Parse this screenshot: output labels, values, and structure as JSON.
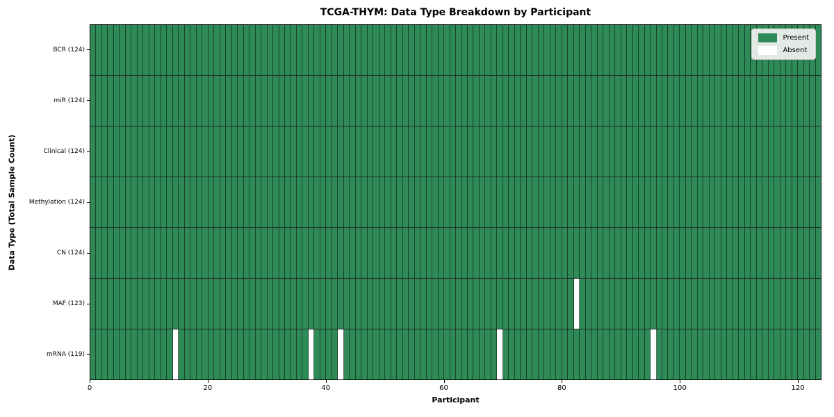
{
  "title": "TCGA-THYM: Data Type Breakdown by Participant",
  "chart_data": {
    "type": "heatmap",
    "title": "TCGA-THYM: Data Type Breakdown by Participant",
    "xlabel": "Participant",
    "ylabel": "Data Type (Total Sample Count)",
    "n_participants": 124,
    "x_range": [
      0,
      124
    ],
    "x_ticks": [
      0,
      20,
      40,
      60,
      80,
      100,
      120
    ],
    "grid": true,
    "legend_position": "upper right",
    "rows": [
      {
        "label": "BCR (124)",
        "total": 124,
        "absent_indices": []
      },
      {
        "label": "miR (124)",
        "total": 124,
        "absent_indices": []
      },
      {
        "label": "Clinical (124)",
        "total": 124,
        "absent_indices": []
      },
      {
        "label": "Methylation (124)",
        "total": 124,
        "absent_indices": []
      },
      {
        "label": "CN (124)",
        "total": 124,
        "absent_indices": []
      },
      {
        "label": "MAF (123)",
        "total": 123,
        "absent_indices": [
          82
        ]
      },
      {
        "label": "mRNA (119)",
        "total": 119,
        "absent_indices": [
          14,
          37,
          42,
          69,
          95
        ]
      }
    ],
    "legend": [
      {
        "label": "Present",
        "color": "#2e8b57"
      },
      {
        "label": "Absent",
        "color": "#ffffff"
      }
    ],
    "colors": {
      "present": "#2e8b57",
      "absent": "#ffffff",
      "cell_line": "rgba(10,30,18,0.65)",
      "row_line": "rgba(0,0,0,0.85)",
      "axes_border": "#000000"
    }
  }
}
